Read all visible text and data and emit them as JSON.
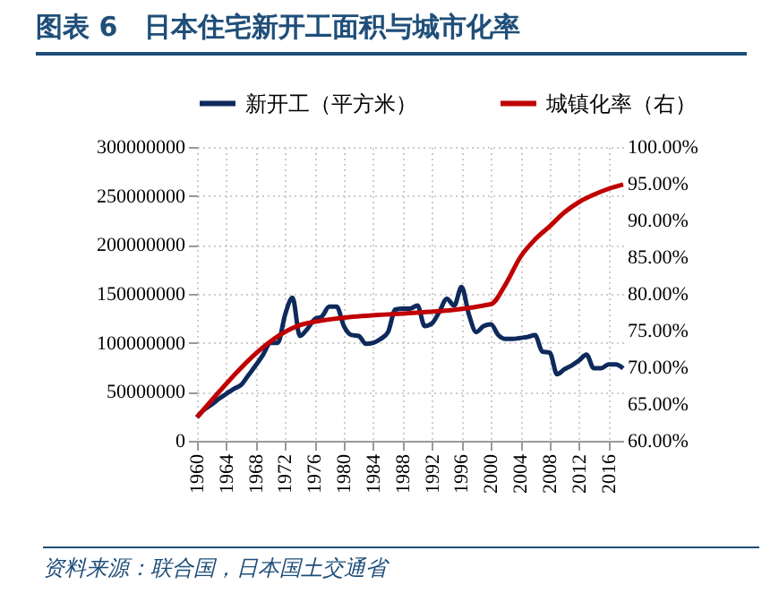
{
  "chart_data": {
    "type": "line",
    "title": "图表 6　日本住宅新开工面积与城市化率",
    "annotations": [
      "资料来源：联合国，日本国土交通省"
    ],
    "x": [
      1960,
      1961,
      1962,
      1963,
      1964,
      1965,
      1966,
      1967,
      1968,
      1969,
      1970,
      1971,
      1972,
      1973,
      1974,
      1975,
      1976,
      1977,
      1978,
      1979,
      1980,
      1981,
      1982,
      1983,
      1984,
      1985,
      1986,
      1987,
      1988,
      1989,
      1990,
      1991,
      1992,
      1993,
      1994,
      1995,
      1996,
      1997,
      1998,
      1999,
      2000,
      2001,
      2002,
      2003,
      2004,
      2005,
      2006,
      2007,
      2008,
      2009,
      2010,
      2011,
      2012,
      2013,
      2014,
      2015,
      2016,
      2017,
      2018
    ],
    "series": [
      {
        "name": "新开工（平方米）",
        "color": "#0e2a5c",
        "values": [
          24000000,
          32000000,
          37000000,
          43000000,
          48000000,
          53000000,
          57000000,
          67000000,
          77000000,
          88000000,
          100000000,
          100000000,
          129000000,
          146000000,
          107000000,
          114000000,
          124000000,
          127000000,
          137000000,
          137000000,
          117000000,
          108000000,
          107000000,
          99000000,
          100000000,
          104000000,
          111000000,
          134000000,
          135000000,
          135000000,
          138000000,
          117000000,
          120000000,
          132000000,
          145000000,
          138000000,
          157000000,
          129000000,
          111000000,
          117000000,
          119000000,
          108000000,
          104000000,
          104000000,
          105000000,
          106000000,
          108000000,
          91000000,
          90000000,
          68000000,
          73000000,
          77000000,
          82000000,
          88000000,
          74000000,
          74000000,
          78000000,
          78000000,
          74000000
        ]
      },
      {
        "name": "城镇化率（右）",
        "color": "#c00000",
        "axis": "y2",
        "x": [
          1960,
          1975,
          2000,
          2002,
          2004,
          2006,
          2008,
          2010,
          2012,
          2014,
          2016,
          2018
        ],
        "values": [
          63.2,
          76.0,
          78.6,
          81.3,
          85.0,
          87.4,
          89.2,
          91.1,
          92.5,
          93.5,
          94.3,
          94.9
        ]
      }
    ],
    "xlim": [
      1960,
      2018
    ],
    "xticks": [
      1960,
      1964,
      1968,
      1972,
      1976,
      1980,
      1984,
      1988,
      1992,
      1996,
      2000,
      2004,
      2008,
      2012,
      2016
    ],
    "ylim": [
      0,
      300000000
    ],
    "yticks": [
      0,
      50000000,
      100000000,
      150000000,
      200000000,
      250000000,
      300000000
    ],
    "y2lim": [
      60,
      100
    ],
    "y2ticks": [
      {
        "value": 60,
        "label": "60.00%"
      },
      {
        "value": 65,
        "label": "65.00%"
      },
      {
        "value": 70,
        "label": "70.00%"
      },
      {
        "value": 75,
        "label": "75.00%"
      },
      {
        "value": 80,
        "label": "80.00%"
      },
      {
        "value": 85,
        "label": "85.00%"
      },
      {
        "value": 90,
        "label": "90.00%"
      },
      {
        "value": 95,
        "label": "95.00%"
      },
      {
        "value": 100,
        "label": "100.00%"
      }
    ],
    "grid": true,
    "legend": "top",
    "line_style": "solid"
  }
}
